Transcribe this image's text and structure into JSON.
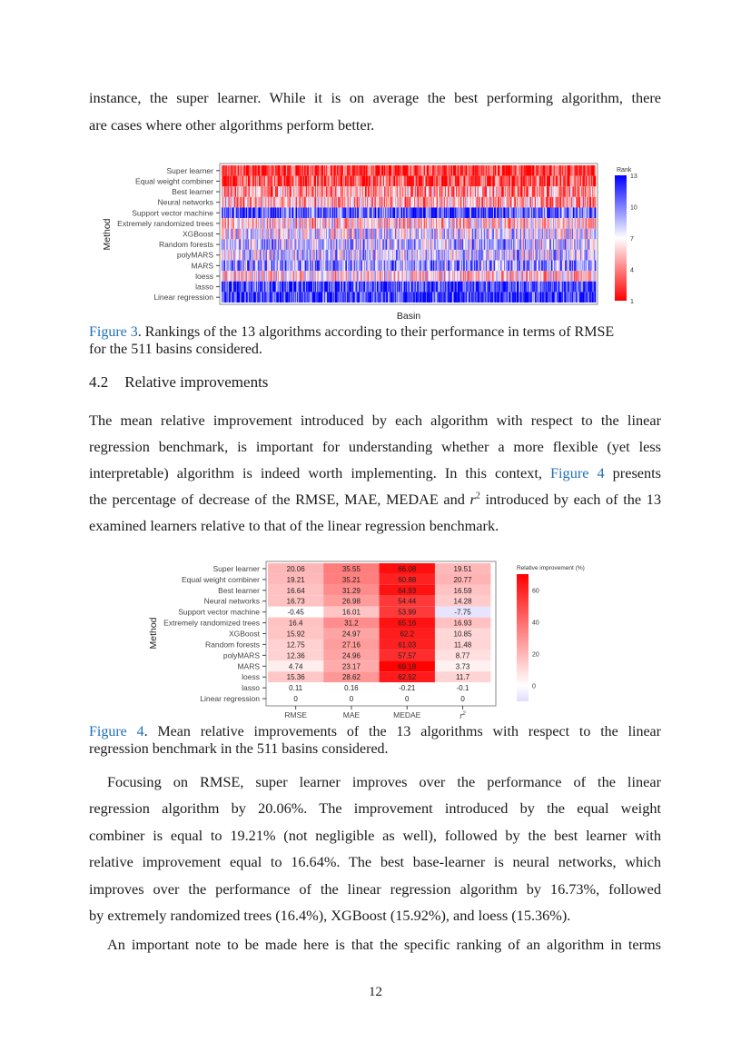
{
  "top_paragraph": {
    "lines": [
      [
        {
          "t": "instance, the super learner. While it is on average the best performing algorithm, there"
        }
      ],
      [
        {
          "t": "are cases where other algorithms perform better."
        }
      ]
    ]
  },
  "figure3": {
    "caption_label": "Figure 3",
    "caption_lines": [
      ". Rankings of the 13 algorithms according to their performance in terms of RMSE",
      "for the 511 basins considered."
    ]
  },
  "section": {
    "number": "4.2",
    "title": "Relative improvements"
  },
  "section_paragraph": {
    "lines": [
      [
        {
          "t": "The mean relative improvement introduced by each algorithm with respect to the linear"
        }
      ],
      [
        {
          "t": "regression benchmark, is important for understanding whether a more flexible (yet less"
        }
      ],
      [
        {
          "t": "interpretable) algorithm is indeed worth implementing. In this context, "
        },
        {
          "t": "Figure 4",
          "link": true
        },
        {
          "t": " presents"
        }
      ],
      [
        {
          "t": "the percentage of decrease of the RMSE, MAE, MEDAE and "
        },
        {
          "t": "r",
          "i": true
        },
        {
          "t": "2",
          "sup": true
        },
        {
          "t": " introduced by each of the 13"
        }
      ],
      [
        {
          "t": "examined learners relative to that of the linear regression benchmark."
        }
      ]
    ]
  },
  "figure4": {
    "caption_label": "Figure 4",
    "caption_lines": [
      ". Mean relative improvements of the 13 algorithms with respect to the linear",
      "regression benchmark in the 511 basins considered."
    ]
  },
  "focus_paragraph": {
    "lines": [
      [
        {
          "t": "Focusing on RMSE, super learner improves over the performance of the linear"
        }
      ],
      [
        {
          "t": "regression algorithm by 20.06%. The improvement introduced by the equal weight"
        }
      ],
      [
        {
          "t": "combiner is equal to 19.21% (not negligible as well), followed by the best learner with"
        }
      ],
      [
        {
          "t": "relative improvement equal to 16.64%. The best base-learner is neural networks, which"
        }
      ],
      [
        {
          "t": "improves over the performance of the linear regression algorithm by 16.73%, followed"
        }
      ],
      [
        {
          "t": "by extremely randomized trees (16.4%), XGBoost (15.92%), and loess (15.36%)."
        }
      ]
    ]
  },
  "last_paragraph": {
    "lines": [
      [
        {
          "t": "An important note to be made here is that the specific ranking of an algorithm in terms"
        }
      ]
    ]
  },
  "page_number": "12",
  "chart_data": [
    {
      "type": "heatmap",
      "xlabel": "Basin",
      "ylabel": "Method",
      "n_basins": 511,
      "methods": [
        "Super learner",
        "Equal weight combiner",
        "Best learner",
        "Neural networks",
        "Support vector machine",
        "Extremely randomized trees",
        "XGBoost",
        "Random forests",
        "polyMARS",
        "MARS",
        "loess",
        "lasso",
        "Linear regression"
      ],
      "legend_title": "Rank",
      "legend_ticks": [
        13,
        10,
        7,
        4,
        1
      ],
      "color_scale": {
        "low": "#ff0000",
        "mid": "#ffffff",
        "high": "#0000ff",
        "min": 1,
        "mid_value": 7,
        "max": 13
      }
    },
    {
      "type": "heatmap",
      "ylabel": "Method",
      "methods": [
        "Super learner",
        "Equal weight combiner",
        "Best learner",
        "Neural networks",
        "Support vector machine",
        "Extremely randomized trees",
        "XGBoost",
        "Random forests",
        "polyMARS",
        "MARS",
        "loess",
        "lasso",
        "Linear regression"
      ],
      "columns": [
        "RMSE",
        "MAE",
        "MEDAE",
        "r2"
      ],
      "values": [
        [
          20.06,
          35.55,
          66.08,
          19.51
        ],
        [
          19.21,
          35.21,
          60.88,
          20.77
        ],
        [
          16.64,
          31.29,
          64.93,
          16.59
        ],
        [
          16.73,
          26.98,
          54.44,
          14.28
        ],
        [
          -0.45,
          16.01,
          53.99,
          -7.75
        ],
        [
          16.4,
          31.2,
          65.16,
          16.93
        ],
        [
          15.92,
          24.97,
          62.2,
          10.85
        ],
        [
          12.75,
          27.16,
          61.03,
          11.48
        ],
        [
          12.36,
          24.96,
          57.57,
          8.77
        ],
        [
          4.74,
          23.17,
          69.18,
          3.73
        ],
        [
          15.36,
          28.62,
          62.52,
          11.7
        ],
        [
          0.11,
          0.16,
          -0.21,
          -0.1
        ],
        [
          0,
          0,
          0,
          0
        ]
      ],
      "legend_title": "Relative improvement (%)",
      "legend_ticks": [
        60,
        40,
        20,
        0
      ],
      "color_scale": {
        "low": "#e0dcff",
        "zero": "#ffffff",
        "high": "#ff0000",
        "min": -10,
        "max": 70
      }
    }
  ]
}
